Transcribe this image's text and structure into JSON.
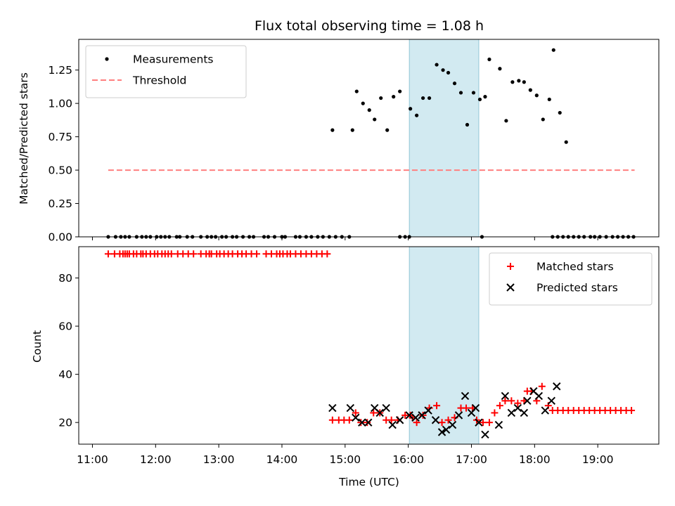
{
  "chart_data": [
    {
      "type": "scatter",
      "title": "Flux total observing time = 1.08 h",
      "xlabel": "",
      "ylabel": "Matched/Predicted stars",
      "ylim": [
        0,
        1.48
      ],
      "yticks": [
        "0.00",
        "0.25",
        "0.50",
        "0.75",
        "1.00",
        "1.25"
      ],
      "ytick_values": [
        0,
        0.25,
        0.5,
        0.75,
        1.0,
        1.25
      ],
      "highlight_span": [
        "16:01",
        "17:07"
      ],
      "highlight_color": "#add8e6",
      "legend_position": "top-left",
      "series": [
        {
          "name": "Measurements",
          "color": "#000000",
          "marker": "dot",
          "points": [
            [
              "11:15",
              0
            ],
            [
              "11:22",
              0
            ],
            [
              "11:27",
              0
            ],
            [
              "11:31",
              0
            ],
            [
              "11:35",
              0
            ],
            [
              "11:42",
              0
            ],
            [
              "11:47",
              0
            ],
            [
              "11:51",
              0
            ],
            [
              "11:55",
              0
            ],
            [
              "12:01",
              0
            ],
            [
              "12:05",
              0
            ],
            [
              "12:09",
              0
            ],
            [
              "12:13",
              0
            ],
            [
              "12:20",
              0
            ],
            [
              "12:23",
              0
            ],
            [
              "12:30",
              0
            ],
            [
              "12:35",
              0
            ],
            [
              "12:43",
              0
            ],
            [
              "12:49",
              0
            ],
            [
              "12:53",
              0
            ],
            [
              "12:57",
              0
            ],
            [
              "13:03",
              0
            ],
            [
              "13:07",
              0
            ],
            [
              "13:13",
              0
            ],
            [
              "13:17",
              0
            ],
            [
              "13:23",
              0
            ],
            [
              "13:29",
              0
            ],
            [
              "13:33",
              0
            ],
            [
              "13:43",
              0
            ],
            [
              "13:47",
              0
            ],
            [
              "13:53",
              0
            ],
            [
              "14:00",
              0
            ],
            [
              "14:03",
              0
            ],
            [
              "14:13",
              0
            ],
            [
              "14:17",
              0
            ],
            [
              "14:23",
              0
            ],
            [
              "14:28",
              0
            ],
            [
              "14:34",
              0
            ],
            [
              "14:39",
              0
            ],
            [
              "14:45",
              0
            ],
            [
              "14:51",
              0
            ],
            [
              "14:57",
              0
            ],
            [
              "15:04",
              0
            ],
            [
              "15:52",
              0
            ],
            [
              "15:57",
              0
            ],
            [
              "16:01",
              0
            ],
            [
              "17:10",
              0
            ],
            [
              "18:17",
              0
            ],
            [
              "18:22",
              0
            ],
            [
              "18:27",
              0
            ],
            [
              "18:32",
              0
            ],
            [
              "18:37",
              0
            ],
            [
              "18:42",
              0
            ],
            [
              "18:47",
              0
            ],
            [
              "18:53",
              0
            ],
            [
              "18:57",
              0
            ],
            [
              "19:02",
              0
            ],
            [
              "19:08",
              0
            ],
            [
              "19:14",
              0
            ],
            [
              "19:19",
              0
            ],
            [
              "19:24",
              0
            ],
            [
              "19:29",
              0
            ],
            [
              "19:34",
              0
            ],
            [
              "14:48",
              0.8
            ],
            [
              "15:07",
              0.8
            ],
            [
              "15:11",
              1.09
            ],
            [
              "15:17",
              1.0
            ],
            [
              "15:23",
              0.95
            ],
            [
              "15:28",
              0.88
            ],
            [
              "15:34",
              1.04
            ],
            [
              "15:40",
              0.8
            ],
            [
              "15:46",
              1.05
            ],
            [
              "15:52",
              1.09
            ],
            [
              "16:02",
              0.96
            ],
            [
              "16:08",
              0.91
            ],
            [
              "16:14",
              1.04
            ],
            [
              "16:20",
              1.04
            ],
            [
              "16:27",
              1.29
            ],
            [
              "16:33",
              1.25
            ],
            [
              "16:38",
              1.23
            ],
            [
              "16:44",
              1.15
            ],
            [
              "16:50",
              1.08
            ],
            [
              "16:56",
              0.84
            ],
            [
              "17:02",
              1.08
            ],
            [
              "17:08",
              1.03
            ],
            [
              "17:13",
              1.05
            ],
            [
              "17:17",
              1.33
            ],
            [
              "17:27",
              1.26
            ],
            [
              "17:33",
              0.87
            ],
            [
              "17:39",
              1.16
            ],
            [
              "17:45",
              1.17
            ],
            [
              "17:50",
              1.16
            ],
            [
              "17:56",
              1.1
            ],
            [
              "18:02",
              1.06
            ],
            [
              "18:08",
              0.88
            ],
            [
              "18:14",
              1.03
            ],
            [
              "18:18",
              1.4
            ],
            [
              "18:24",
              0.93
            ],
            [
              "18:30",
              0.71
            ]
          ]
        },
        {
          "name": "Threshold",
          "color": "#ff7f7f",
          "style": "dashed",
          "x": [
            "11:15",
            "19:35"
          ],
          "values": [
            0.5,
            0.5
          ]
        }
      ]
    },
    {
      "type": "scatter",
      "xlabel": "Time (UTC)",
      "ylabel": "Count",
      "ylim": [
        11,
        93
      ],
      "yticks": [
        "20",
        "40",
        "60",
        "80"
      ],
      "ytick_values": [
        20,
        40,
        60,
        80
      ],
      "xticks": [
        "11:00",
        "12:00",
        "13:00",
        "14:00",
        "15:00",
        "16:00",
        "17:00",
        "18:00",
        "19:00"
      ],
      "highlight_span": [
        "16:01",
        "17:07"
      ],
      "highlight_color": "#add8e6",
      "legend_position": "top-right",
      "series": [
        {
          "name": "Matched stars",
          "color": "#ff0000",
          "marker": "plus",
          "points": [
            [
              "11:15",
              90
            ],
            [
              "11:21",
              90
            ],
            [
              "11:26",
              90
            ],
            [
              "11:29",
              90
            ],
            [
              "11:31",
              90
            ],
            [
              "11:33",
              90
            ],
            [
              "11:35",
              90
            ],
            [
              "11:39",
              90
            ],
            [
              "11:42",
              90
            ],
            [
              "11:46",
              90
            ],
            [
              "11:48",
              90
            ],
            [
              "11:51",
              90
            ],
            [
              "11:55",
              90
            ],
            [
              "11:59",
              90
            ],
            [
              "12:02",
              90
            ],
            [
              "12:06",
              90
            ],
            [
              "12:09",
              90
            ],
            [
              "12:12",
              90
            ],
            [
              "12:15",
              90
            ],
            [
              "12:21",
              90
            ],
            [
              "12:26",
              90
            ],
            [
              "12:31",
              90
            ],
            [
              "12:36",
              90
            ],
            [
              "12:43",
              90
            ],
            [
              "12:48",
              90
            ],
            [
              "12:51",
              90
            ],
            [
              "12:53",
              90
            ],
            [
              "12:58",
              90
            ],
            [
              "13:01",
              90
            ],
            [
              "13:05",
              90
            ],
            [
              "13:09",
              90
            ],
            [
              "13:13",
              90
            ],
            [
              "13:18",
              90
            ],
            [
              "13:22",
              90
            ],
            [
              "13:26",
              90
            ],
            [
              "13:31",
              90
            ],
            [
              "13:36",
              90
            ],
            [
              "13:45",
              90
            ],
            [
              "13:50",
              90
            ],
            [
              "13:55",
              90
            ],
            [
              "13:58",
              90
            ],
            [
              "14:01",
              90
            ],
            [
              "14:05",
              90
            ],
            [
              "14:08",
              90
            ],
            [
              "14:13",
              90
            ],
            [
              "14:18",
              90
            ],
            [
              "14:23",
              90
            ],
            [
              "14:28",
              90
            ],
            [
              "14:33",
              90
            ],
            [
              "14:38",
              90
            ],
            [
              "14:43",
              90
            ],
            [
              "14:48",
              21
            ],
            [
              "14:54",
              21
            ],
            [
              "14:59",
              21
            ],
            [
              "15:04",
              21
            ],
            [
              "15:10",
              24
            ],
            [
              "15:15",
              20
            ],
            [
              "15:21",
              20
            ],
            [
              "15:27",
              24
            ],
            [
              "15:33",
              24
            ],
            [
              "15:39",
              21
            ],
            [
              "15:44",
              21
            ],
            [
              "15:50",
              21
            ],
            [
              "15:57",
              23
            ],
            [
              "16:02",
              23
            ],
            [
              "16:04",
              22
            ],
            [
              "16:08",
              20
            ],
            [
              "16:14",
              23
            ],
            [
              "16:20",
              26
            ],
            [
              "16:27",
              27
            ],
            [
              "16:32",
              20
            ],
            [
              "16:38",
              21
            ],
            [
              "16:44",
              22
            ],
            [
              "16:50",
              26
            ],
            [
              "16:55",
              26
            ],
            [
              "17:01",
              26
            ],
            [
              "17:05",
              21
            ],
            [
              "17:11",
              20
            ],
            [
              "17:17",
              20
            ],
            [
              "17:22",
              24
            ],
            [
              "17:27",
              27
            ],
            [
              "17:32",
              29
            ],
            [
              "17:38",
              29
            ],
            [
              "17:44",
              28
            ],
            [
              "17:50",
              29
            ],
            [
              "17:53",
              33
            ],
            [
              "17:57",
              33
            ],
            [
              "18:02",
              29
            ],
            [
              "18:07",
              35
            ],
            [
              "18:13",
              27
            ],
            [
              "18:17",
              25
            ],
            [
              "18:22",
              25
            ],
            [
              "18:27",
              25
            ],
            [
              "18:32",
              25
            ],
            [
              "18:37",
              25
            ],
            [
              "18:42",
              25
            ],
            [
              "18:47",
              25
            ],
            [
              "18:52",
              25
            ],
            [
              "18:57",
              25
            ],
            [
              "19:02",
              25
            ],
            [
              "19:07",
              25
            ],
            [
              "19:12",
              25
            ],
            [
              "19:17",
              25
            ],
            [
              "19:22",
              25
            ],
            [
              "19:27",
              25
            ],
            [
              "19:32",
              25
            ]
          ]
        },
        {
          "name": "Predicted stars",
          "color": "#000000",
          "marker": "x",
          "points": [
            [
              "14:48",
              26
            ],
            [
              "15:05",
              26
            ],
            [
              "15:10",
              22
            ],
            [
              "15:16",
              20
            ],
            [
              "15:22",
              20
            ],
            [
              "15:28",
              26
            ],
            [
              "15:33",
              24
            ],
            [
              "15:39",
              26
            ],
            [
              "15:45",
              19
            ],
            [
              "15:52",
              21
            ],
            [
              "16:01",
              23
            ],
            [
              "16:07",
              22
            ],
            [
              "16:13",
              23
            ],
            [
              "16:19",
              25
            ],
            [
              "16:26",
              21
            ],
            [
              "16:32",
              16
            ],
            [
              "16:36",
              17
            ],
            [
              "16:42",
              19
            ],
            [
              "16:48",
              23
            ],
            [
              "16:54",
              31
            ],
            [
              "17:00",
              24
            ],
            [
              "17:04",
              26
            ],
            [
              "17:07",
              20
            ],
            [
              "17:13",
              15
            ],
            [
              "17:26",
              19
            ],
            [
              "17:32",
              31
            ],
            [
              "17:38",
              24
            ],
            [
              "17:44",
              26
            ],
            [
              "17:50",
              24
            ],
            [
              "17:53",
              29
            ],
            [
              "17:59",
              33
            ],
            [
              "18:04",
              31
            ],
            [
              "18:10",
              25
            ],
            [
              "18:16",
              29
            ],
            [
              "18:21",
              35
            ]
          ]
        }
      ]
    }
  ]
}
